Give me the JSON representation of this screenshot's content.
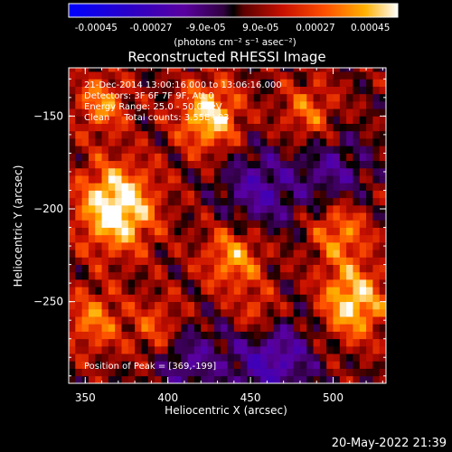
{
  "colorbar": {
    "tick_labels": [
      "-0.00045",
      "-0.00027",
      "-9.0e-05",
      "9.0e-05",
      "0.00027",
      "0.00045"
    ],
    "unit_label": "(photons cm⁻² s⁻¹ asec⁻²)",
    "range": [
      -0.00045,
      0.00045
    ]
  },
  "chart_data": {
    "type": "heatmap",
    "title": "Reconstructed RHESSI Image",
    "xlabel": "Heliocentric X (arcsec)",
    "ylabel": "Heliocentric Y (arcsec)",
    "xlim": [
      340,
      532
    ],
    "ylim": [
      -294,
      -124
    ],
    "x_ticks": [
      350,
      400,
      450,
      500
    ],
    "y_ticks": [
      -150,
      -200,
      -250
    ],
    "x_tick_labels": [
      "350",
      "400",
      "450",
      "500"
    ],
    "y_tick_labels": [
      "−150",
      "−200",
      "−250"
    ],
    "colormap": "red-temperature (blue-purple negative, red-yellow-white positive)",
    "annotations": [
      "21-Dec-2014 13:00:16.000 to 13:06:16.000",
      "Detectors: 3F 6F 7F 9F, Att 0",
      "Energy Range: 25.0 - 50.0 keV",
      "Clean     Total counts: 3.55E+03"
    ],
    "peak_label": "Position of Peak = [369,-199]",
    "peak": [
      369,
      -199
    ],
    "blobs": [
      {
        "x": 369,
        "y": -199,
        "amp": 1.0,
        "sigma": 16
      },
      {
        "x": 425,
        "y": -150,
        "amp": 0.8,
        "sigma": 13
      },
      {
        "x": 440,
        "y": -226,
        "amp": 0.6,
        "sigma": 13
      },
      {
        "x": 512,
        "y": -250,
        "amp": 0.8,
        "sigma": 14
      },
      {
        "x": 504,
        "y": -212,
        "amp": 0.55,
        "sigma": 12
      },
      {
        "x": 355,
        "y": -260,
        "amp": 0.5,
        "sigma": 12
      },
      {
        "x": 360,
        "y": -143,
        "amp": 0.55,
        "sigma": 11
      },
      {
        "x": 395,
        "y": -265,
        "amp": 0.45,
        "sigma": 12
      },
      {
        "x": 485,
        "y": -148,
        "amp": 0.45,
        "sigma": 12
      },
      {
        "x": 455,
        "y": -258,
        "amp": 0.5,
        "sigma": 10
      },
      {
        "x": 462,
        "y": -280,
        "amp": -0.6,
        "sigma": 18
      },
      {
        "x": 455,
        "y": -190,
        "amp": -0.5,
        "sigma": 16
      },
      {
        "x": 410,
        "y": -280,
        "amp": -0.45,
        "sigma": 14
      },
      {
        "x": 500,
        "y": -180,
        "amp": -0.4,
        "sigma": 15
      }
    ]
  },
  "timestamp": "20-May-2022 21:39"
}
